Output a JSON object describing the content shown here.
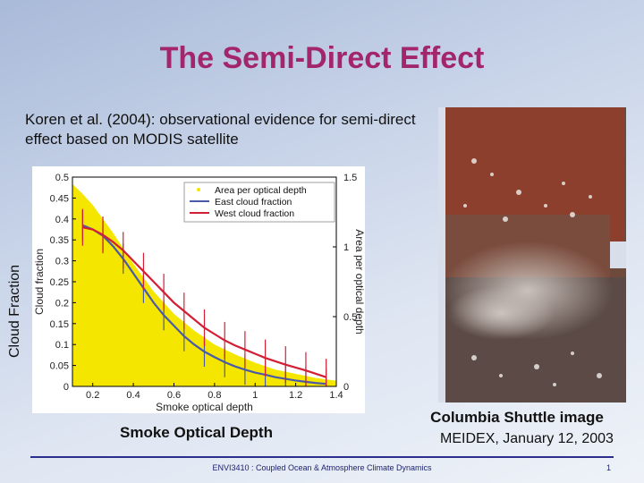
{
  "slide": {
    "title": "The Semi-Direct Effect",
    "citation": "Koren et al. (2004): observational evidence for semi-direct effect based on MODIS satellite",
    "y_axis_label": "Cloud Fraction",
    "x_axis_label": "Smoke Optical Depth"
  },
  "chart_data": {
    "type": "line",
    "xlabel": "Smoke optical depth",
    "ylabel": "Cloud fraction",
    "ylabel_right": "Area per optical depth",
    "xlim": [
      0.1,
      1.4
    ],
    "ylim": [
      0,
      0.5
    ],
    "ylim_right": [
      0,
      1.5
    ],
    "x_ticks": [
      "0.2",
      "0.4",
      "0.6",
      "0.8",
      "1",
      "1.2",
      "1.4"
    ],
    "y_ticks": [
      "0",
      "0.05",
      "0.1",
      "0.15",
      "0.2",
      "0.25",
      "0.3",
      "0.35",
      "0.4",
      "0.45",
      "0.5"
    ],
    "y_ticks_right": [
      "0",
      "0.5",
      "1",
      "1.5"
    ],
    "legend": [
      "Area per optical depth",
      "East cloud fraction",
      "West cloud fraction"
    ],
    "legend_position": "top-right",
    "grid": false,
    "colors": {
      "area": "#f5e600",
      "east": "#4a5aa8",
      "west": "#d21f35"
    },
    "series": [
      {
        "name": "Area per optical depth",
        "kind": "area",
        "axis": "right",
        "x": [
          0.1,
          0.15,
          0.2,
          0.3,
          0.4,
          0.5,
          0.6,
          0.7,
          0.8,
          0.9,
          1.0,
          1.1,
          1.2,
          1.3,
          1.4
        ],
        "y": [
          1.45,
          1.38,
          1.3,
          1.1,
          0.88,
          0.68,
          0.52,
          0.4,
          0.3,
          0.23,
          0.17,
          0.12,
          0.09,
          0.06,
          0.04
        ]
      },
      {
        "name": "East cloud fraction",
        "kind": "line",
        "axis": "left",
        "x": [
          0.15,
          0.2,
          0.25,
          0.3,
          0.35,
          0.4,
          0.45,
          0.5,
          0.55,
          0.6,
          0.65,
          0.7,
          0.75,
          0.8,
          0.85,
          0.9,
          0.95,
          1.0,
          1.05,
          1.1,
          1.15,
          1.2,
          1.25,
          1.3,
          1.35
        ],
        "y": [
          0.385,
          0.375,
          0.36,
          0.335,
          0.305,
          0.27,
          0.235,
          0.2,
          0.17,
          0.145,
          0.12,
          0.1,
          0.083,
          0.07,
          0.058,
          0.048,
          0.04,
          0.033,
          0.028,
          0.022,
          0.018,
          0.014,
          0.011,
          0.008,
          0.006
        ]
      },
      {
        "name": "West cloud fraction",
        "kind": "line",
        "axis": "left",
        "x": [
          0.15,
          0.2,
          0.25,
          0.3,
          0.35,
          0.4,
          0.45,
          0.5,
          0.55,
          0.6,
          0.65,
          0.7,
          0.75,
          0.8,
          0.85,
          0.9,
          0.95,
          1.0,
          1.05,
          1.1,
          1.15,
          1.2,
          1.25,
          1.3,
          1.35
        ],
        "y": [
          0.38,
          0.375,
          0.362,
          0.345,
          0.325,
          0.3,
          0.275,
          0.25,
          0.225,
          0.2,
          0.18,
          0.16,
          0.14,
          0.125,
          0.11,
          0.098,
          0.088,
          0.078,
          0.068,
          0.06,
          0.052,
          0.045,
          0.038,
          0.03,
          0.022
        ]
      }
    ]
  },
  "image": {
    "caption_line1": "Columbia Shuttle image",
    "caption_line2": "MEIDEX, January 12, 2003"
  },
  "footer": {
    "course": "ENVI3410 : Coupled Ocean & Atmosphere Climate Dynamics",
    "page_number": "1"
  }
}
